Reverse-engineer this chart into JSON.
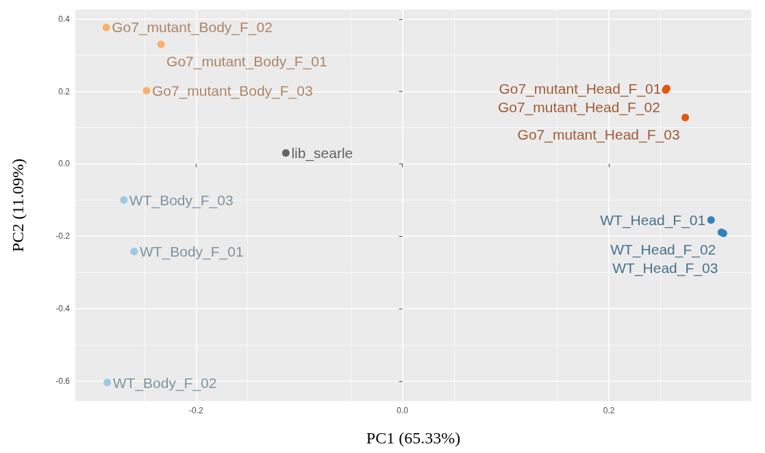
{
  "chart_data": {
    "type": "scatter",
    "xlabel": "PC1 (65.33%)",
    "ylabel": "PC2 (11.09%)",
    "xlim": [
      -0.317,
      0.338
    ],
    "ylim": [
      -0.655,
      0.426
    ],
    "xticks": [
      -0.2,
      {
        "value": 0,
        "label": "0.0"
      },
      0.2
    ],
    "yticks": [
      -0.6,
      -0.4,
      -0.2,
      {
        "value": 0,
        "label": "0.0"
      },
      0.2,
      0.4
    ],
    "grid": true,
    "marker": "circle",
    "series": [
      {
        "color": "#fdae6b",
        "x": [
          -0.287,
          -0.234,
          -0.248
        ],
        "values": [
          0.377,
          0.33,
          0.202
        ]
      },
      {
        "color": "#e6550d",
        "x": [
          0.256,
          0.255,
          0.274
        ],
        "values": [
          0.208,
          0.204,
          0.128
        ]
      },
      {
        "color": "#636363",
        "x": [
          -0.113
        ],
        "values": [
          0.03
        ]
      },
      {
        "color": "#9ecae1",
        "x": [
          -0.27,
          -0.26,
          -0.286
        ],
        "values": [
          -0.1,
          -0.242,
          -0.604
        ]
      },
      {
        "color": "#3182bd",
        "x": [
          0.299,
          0.309,
          0.311
        ],
        "values": [
          -0.155,
          -0.189,
          -0.192
        ]
      }
    ],
    "annotations": [
      {
        "text": "Go7_mutant_Body_F_02",
        "x": -0.287,
        "y": 0.377
      },
      {
        "text": "Go7_mutant_Body_F_01",
        "x": -0.234,
        "y": 0.33
      },
      {
        "text": "Go7_mutant_Body_F_03",
        "x": -0.248,
        "y": 0.202
      },
      {
        "text": "Go7_mutant_Head_F_01",
        "x": 0.256,
        "y": 0.208
      },
      {
        "text": "Go7_mutant_Head_F_02",
        "x": 0.255,
        "y": 0.204
      },
      {
        "text": "Go7_mutant_Head_F_03",
        "x": 0.274,
        "y": 0.128
      },
      {
        "text": "lib_searle",
        "x": -0.113,
        "y": 0.03
      },
      {
        "text": "WT_Body_F_03",
        "x": -0.27,
        "y": -0.1
      },
      {
        "text": "WT_Body_F_01",
        "x": -0.26,
        "y": -0.242
      },
      {
        "text": "WT_Body_F_02",
        "x": -0.286,
        "y": -0.604
      },
      {
        "text": "WT_Head_F_01",
        "x": 0.299,
        "y": -0.155
      },
      {
        "text": "WT_Head_F_02",
        "x": 0.309,
        "y": -0.189
      },
      {
        "text": "WT_Head_F_03",
        "x": 0.311,
        "y": -0.192
      }
    ]
  }
}
